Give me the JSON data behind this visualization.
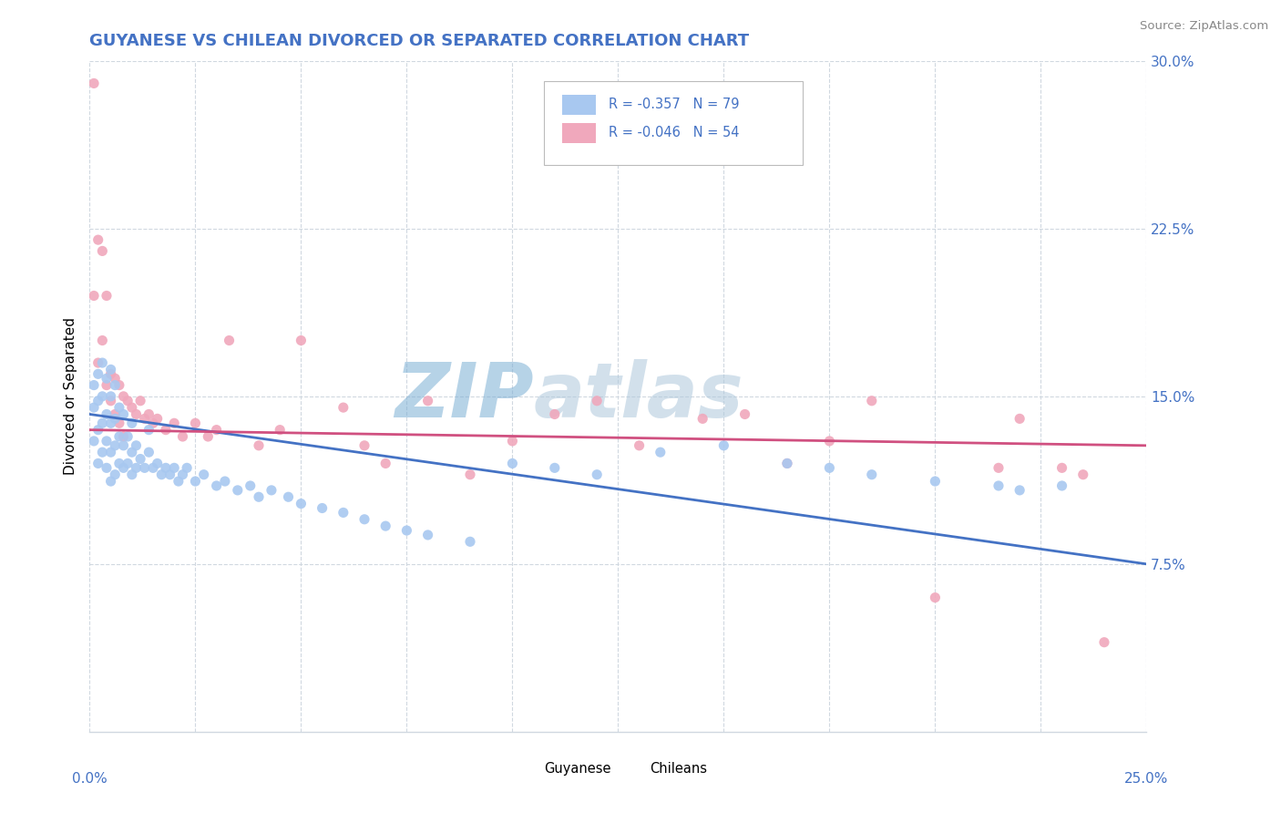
{
  "title": "GUYANESE VS CHILEAN DIVORCED OR SEPARATED CORRELATION CHART",
  "source_text": "Source: ZipAtlas.com",
  "ylabel": "Divorced or Separated",
  "xlim": [
    0.0,
    0.25
  ],
  "ylim": [
    0.0,
    0.3
  ],
  "guyanese_R": -0.357,
  "guyanese_N": 79,
  "chilean_R": -0.046,
  "chilean_N": 54,
  "guyanese_color": "#a8c8f0",
  "chilean_color": "#f0a8bc",
  "regression_blue": "#4472c4",
  "regression_pink": "#d05080",
  "watermark_ZI": "#7bafd4",
  "watermark_atl": "#c8d8e8",
  "watermark_as": "#8ab4cc",
  "legend_label_blue": "Guyanese",
  "legend_label_pink": "Chileans",
  "title_color": "#4472c4",
  "source_color": "#888888",
  "axis_label_color": "#4472c4",
  "tick_label_color": "#4472c4",
  "grid_color": "#d0d8e0",
  "guyanese_x": [
    0.001,
    0.001,
    0.001,
    0.002,
    0.002,
    0.002,
    0.002,
    0.003,
    0.003,
    0.003,
    0.003,
    0.004,
    0.004,
    0.004,
    0.004,
    0.005,
    0.005,
    0.005,
    0.005,
    0.005,
    0.006,
    0.006,
    0.006,
    0.006,
    0.007,
    0.007,
    0.007,
    0.008,
    0.008,
    0.008,
    0.009,
    0.009,
    0.01,
    0.01,
    0.01,
    0.011,
    0.011,
    0.012,
    0.013,
    0.014,
    0.014,
    0.015,
    0.016,
    0.017,
    0.018,
    0.019,
    0.02,
    0.021,
    0.022,
    0.023,
    0.025,
    0.027,
    0.03,
    0.032,
    0.035,
    0.038,
    0.04,
    0.043,
    0.047,
    0.05,
    0.055,
    0.06,
    0.065,
    0.07,
    0.075,
    0.08,
    0.09,
    0.1,
    0.11,
    0.12,
    0.135,
    0.15,
    0.165,
    0.175,
    0.185,
    0.2,
    0.215,
    0.22,
    0.23
  ],
  "guyanese_y": [
    0.13,
    0.145,
    0.155,
    0.12,
    0.135,
    0.148,
    0.16,
    0.125,
    0.138,
    0.15,
    0.165,
    0.118,
    0.13,
    0.142,
    0.158,
    0.112,
    0.125,
    0.138,
    0.15,
    0.162,
    0.115,
    0.128,
    0.14,
    0.155,
    0.12,
    0.132,
    0.145,
    0.118,
    0.128,
    0.142,
    0.12,
    0.132,
    0.115,
    0.125,
    0.138,
    0.118,
    0.128,
    0.122,
    0.118,
    0.125,
    0.135,
    0.118,
    0.12,
    0.115,
    0.118,
    0.115,
    0.118,
    0.112,
    0.115,
    0.118,
    0.112,
    0.115,
    0.11,
    0.112,
    0.108,
    0.11,
    0.105,
    0.108,
    0.105,
    0.102,
    0.1,
    0.098,
    0.095,
    0.092,
    0.09,
    0.088,
    0.085,
    0.12,
    0.118,
    0.115,
    0.125,
    0.128,
    0.12,
    0.118,
    0.115,
    0.112,
    0.11,
    0.108,
    0.11
  ],
  "chilean_x": [
    0.001,
    0.001,
    0.002,
    0.002,
    0.003,
    0.003,
    0.004,
    0.004,
    0.005,
    0.005,
    0.006,
    0.006,
    0.007,
    0.007,
    0.008,
    0.008,
    0.009,
    0.01,
    0.011,
    0.012,
    0.013,
    0.014,
    0.015,
    0.016,
    0.018,
    0.02,
    0.022,
    0.025,
    0.028,
    0.03,
    0.033,
    0.04,
    0.045,
    0.05,
    0.06,
    0.065,
    0.07,
    0.08,
    0.09,
    0.1,
    0.11,
    0.12,
    0.13,
    0.145,
    0.155,
    0.165,
    0.175,
    0.185,
    0.2,
    0.215,
    0.22,
    0.23,
    0.235,
    0.24
  ],
  "chilean_y": [
    0.29,
    0.195,
    0.22,
    0.165,
    0.215,
    0.175,
    0.195,
    0.155,
    0.16,
    0.148,
    0.158,
    0.142,
    0.155,
    0.138,
    0.15,
    0.132,
    0.148,
    0.145,
    0.142,
    0.148,
    0.14,
    0.142,
    0.138,
    0.14,
    0.135,
    0.138,
    0.132,
    0.138,
    0.132,
    0.135,
    0.175,
    0.128,
    0.135,
    0.175,
    0.145,
    0.128,
    0.12,
    0.148,
    0.115,
    0.13,
    0.142,
    0.148,
    0.128,
    0.14,
    0.142,
    0.12,
    0.13,
    0.148,
    0.06,
    0.118,
    0.14,
    0.118,
    0.115,
    0.04
  ]
}
